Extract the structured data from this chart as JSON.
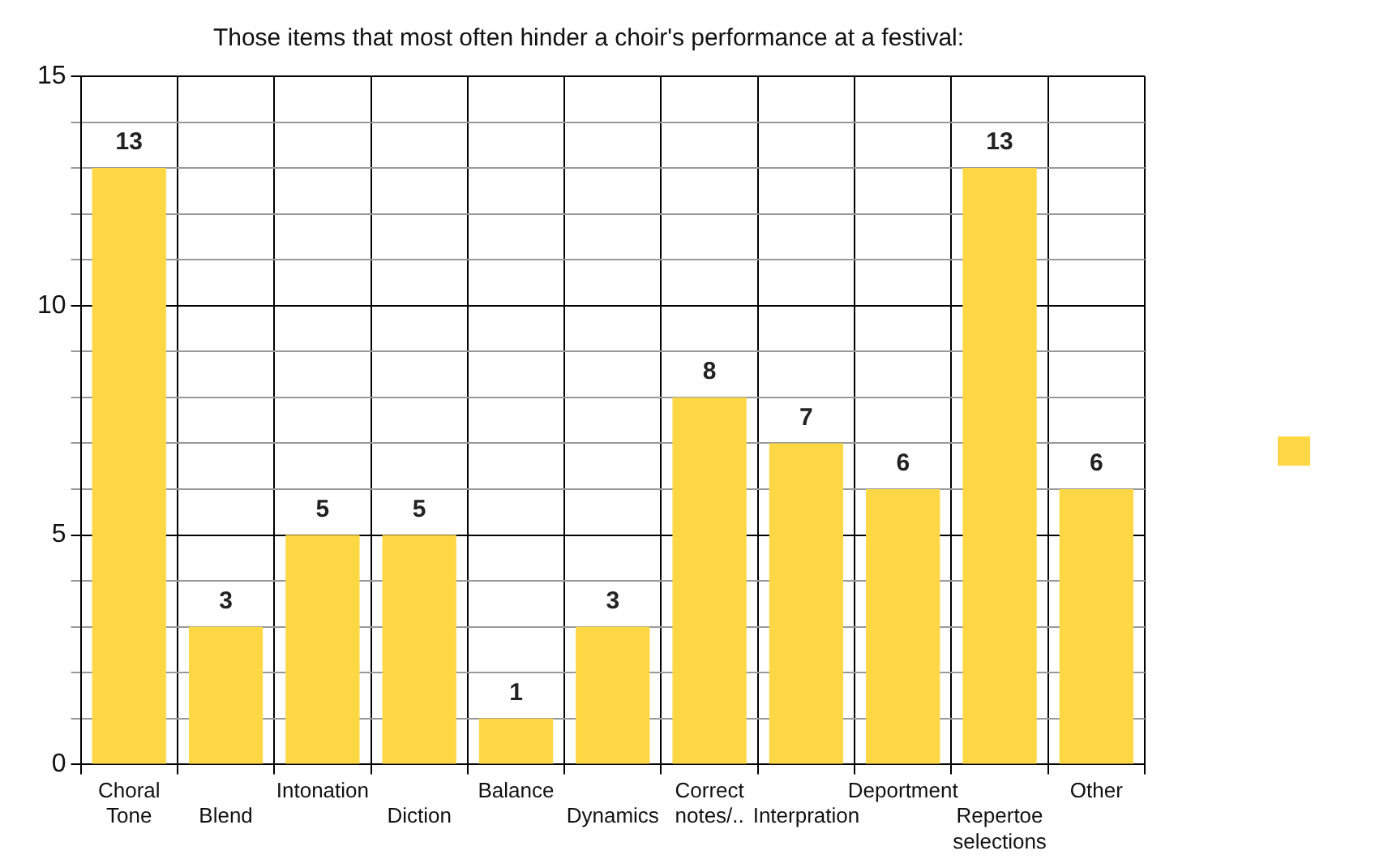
{
  "chart_data": {
    "type": "bar",
    "title": "Those items that most often hinder a choir's performance at a festival:",
    "categories": [
      "Choral Tone",
      "Blend",
      "Intonation",
      "Diction",
      "Balance",
      "Dynamics",
      "Correct notes/..",
      "Interpration",
      "Deportment",
      "Repertoe selections",
      "Other"
    ],
    "series": [
      {
        "color": "#fdd744",
        "values": [
          13,
          3,
          5,
          5,
          1,
          3,
          8,
          7,
          6,
          13,
          6
        ]
      }
    ],
    "ylim": [
      0,
      15
    ],
    "yticks": [
      0,
      {
        "value": 1,
        "label": null
      },
      {
        "value": 2,
        "label": null
      },
      {
        "value": 3,
        "label": null
      },
      {
        "value": 4,
        "label": null
      },
      5,
      {
        "value": 6,
        "label": null
      },
      {
        "value": 7,
        "label": null
      },
      {
        "value": 8,
        "label": null
      },
      {
        "value": 9,
        "label": null
      },
      10,
      {
        "value": 11,
        "label": null
      },
      {
        "value": 12,
        "label": null
      },
      {
        "value": 13,
        "label": null
      },
      {
        "value": 14,
        "label": null
      },
      15
    ],
    "grid": true,
    "data_labels": true
  }
}
